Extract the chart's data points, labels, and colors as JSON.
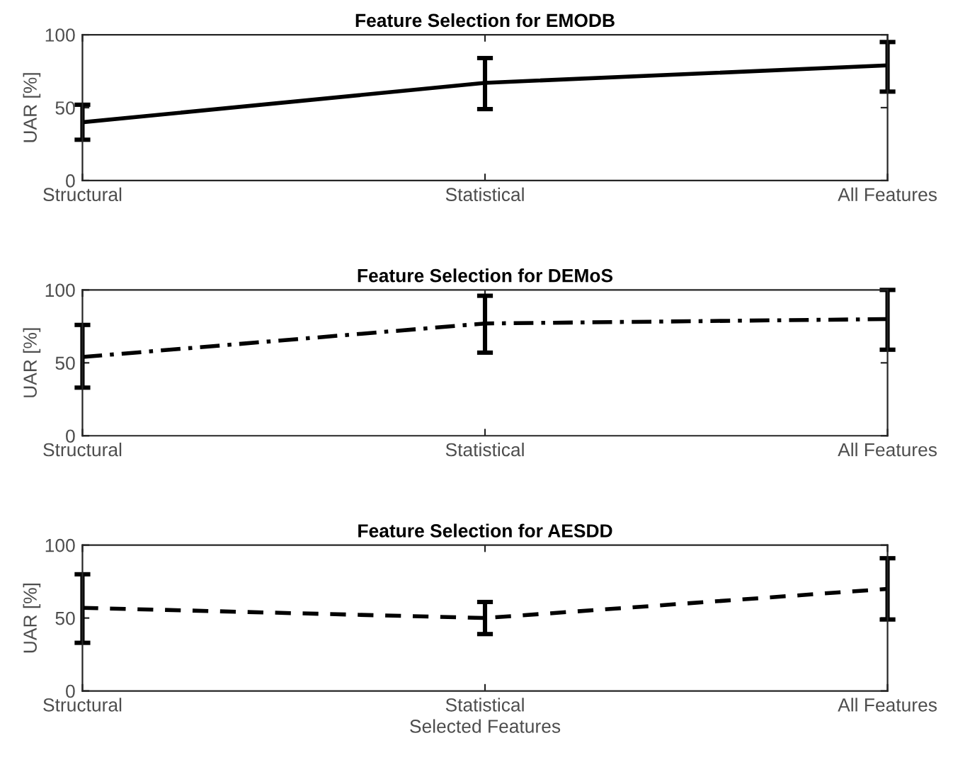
{
  "chart_data": [
    {
      "type": "line",
      "title": "Feature Selection for EMODB",
      "ylabel": "UAR [%]",
      "categories": [
        "Structural",
        "Statistical",
        "All Features"
      ],
      "ylim": [
        0,
        100
      ],
      "yticks": [
        0,
        50,
        100
      ],
      "grid": false,
      "line_style": "solid",
      "marker": "none",
      "series": [
        {
          "color": "#000000",
          "values": [
            40,
            67,
            79
          ],
          "errors": [
            [
              28,
              52
            ],
            [
              49,
              84
            ],
            [
              61,
              95
            ]
          ]
        }
      ]
    },
    {
      "type": "line",
      "title": "Feature Selection for DEMoS",
      "ylabel": "UAR [%]",
      "categories": [
        "Structural",
        "Statistical",
        "All Features"
      ],
      "ylim": [
        0,
        100
      ],
      "yticks": [
        0,
        50,
        100
      ],
      "grid": false,
      "line_style": "dashdot",
      "marker": "none",
      "series": [
        {
          "color": "#000000",
          "values": [
            54,
            77,
            80
          ],
          "errors": [
            [
              33,
              76
            ],
            [
              57,
              96
            ],
            [
              59,
              100
            ]
          ]
        }
      ]
    },
    {
      "type": "line",
      "title": "Feature Selection for AESDD",
      "ylabel": "UAR [%]",
      "xlabel": "Selected Features",
      "categories": [
        "Structural",
        "Statistical",
        "All Features"
      ],
      "ylim": [
        0,
        100
      ],
      "yticks": [
        0,
        50,
        100
      ],
      "grid": false,
      "line_style": "dashed",
      "marker": "none",
      "series": [
        {
          "color": "#000000",
          "values": [
            57,
            50,
            70
          ],
          "errors": [
            [
              33,
              80
            ],
            [
              39,
              61
            ],
            [
              49,
              91
            ]
          ]
        }
      ]
    }
  ]
}
